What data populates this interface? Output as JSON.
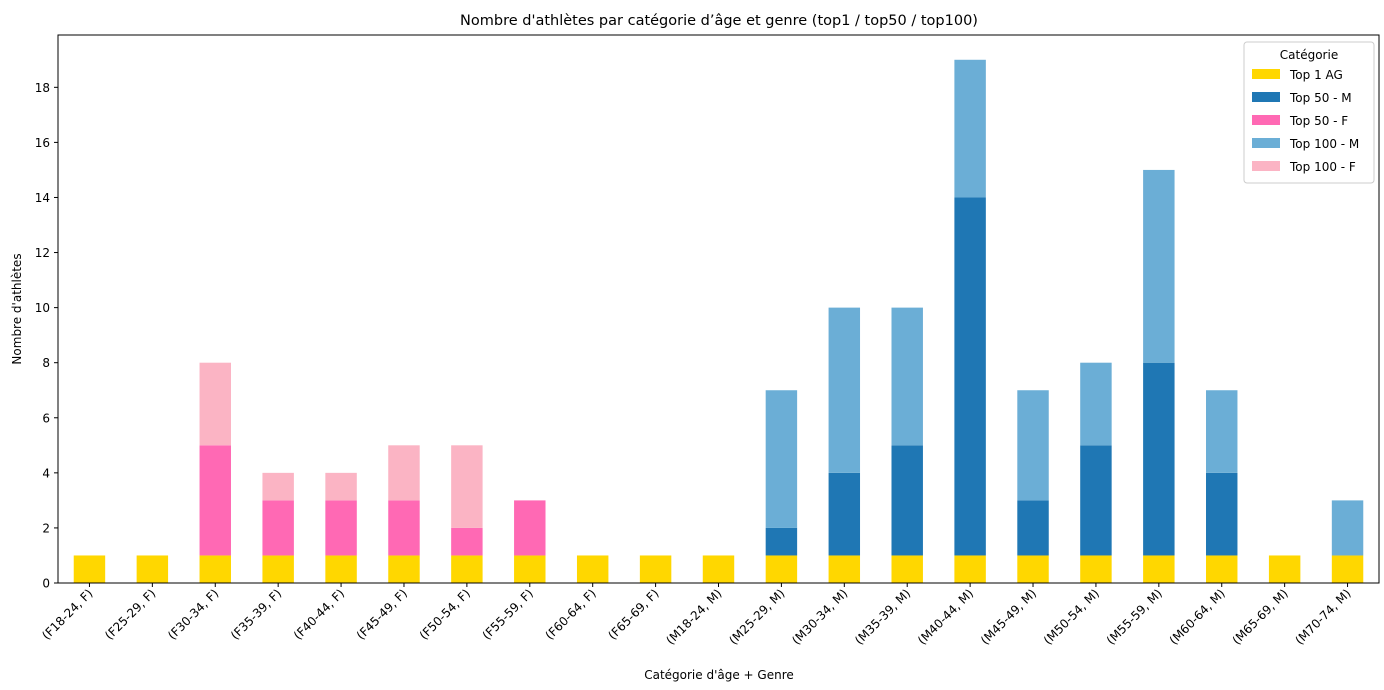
{
  "chart_data": {
    "type": "bar",
    "stacked": true,
    "title": "Nombre d'athlètes par catégorie d’âge et genre (top1 / top50 / top100)",
    "xlabel": "Catégorie d'âge + Genre",
    "ylabel": "Nombre d'athlètes",
    "ylim": [
      0,
      19.9
    ],
    "yticks": [
      0,
      2,
      4,
      6,
      8,
      10,
      12,
      14,
      16,
      18
    ],
    "grid": false,
    "legend": {
      "title": "Catégorie",
      "placement": "top-right"
    },
    "categories": [
      "(F18-24, F)",
      "(F25-29, F)",
      "(F30-34, F)",
      "(F35-39, F)",
      "(F40-44, F)",
      "(F45-49, F)",
      "(F50-54, F)",
      "(F55-59, F)",
      "(F60-64, F)",
      "(F65-69, F)",
      "(M18-24, M)",
      "(M25-29, M)",
      "(M30-34, M)",
      "(M35-39, M)",
      "(M40-44, M)",
      "(M45-49, M)",
      "(M50-54, M)",
      "(M55-59, M)",
      "(M60-64, M)",
      "(M65-69, M)",
      "(M70-74, M)"
    ],
    "series": [
      {
        "name": "Top 1 AG",
        "color": "#FFD700",
        "values": [
          1,
          1,
          1,
          1,
          1,
          1,
          1,
          1,
          1,
          1,
          1,
          1,
          1,
          1,
          1,
          1,
          1,
          1,
          1,
          1,
          1
        ]
      },
      {
        "name": "Top 50 - M",
        "color": "#1F77B4",
        "values": [
          0,
          0,
          0,
          0,
          0,
          0,
          0,
          0,
          0,
          0,
          0,
          1,
          3,
          4,
          13,
          2,
          4,
          7,
          3,
          0,
          0
        ]
      },
      {
        "name": "Top 50 - F",
        "color": "#FF69B4",
        "values": [
          0,
          0,
          4,
          2,
          2,
          2,
          1,
          2,
          0,
          0,
          0,
          0,
          0,
          0,
          0,
          0,
          0,
          0,
          0,
          0,
          0
        ]
      },
      {
        "name": "Top 100 - M",
        "color": "#6BAED6",
        "values": [
          0,
          0,
          0,
          0,
          0,
          0,
          0,
          0,
          0,
          0,
          0,
          5,
          6,
          5,
          5,
          4,
          3,
          7,
          3,
          0,
          2
        ]
      },
      {
        "name": "Top 100 - F",
        "color": "#FBB4C4",
        "values": [
          0,
          0,
          3,
          1,
          1,
          2,
          3,
          0,
          0,
          0,
          0,
          0,
          0,
          0,
          0,
          0,
          0,
          0,
          0,
          0,
          0
        ]
      }
    ]
  }
}
